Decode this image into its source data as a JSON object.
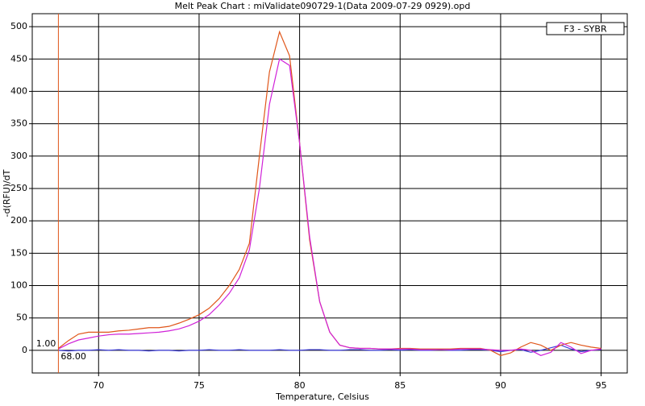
{
  "chart_data": {
    "type": "line",
    "title": "Melt Peak Chart : miValidate090729-1(Data 2009-07-29 0929).opd",
    "x_label": "Temperature, Celsius",
    "y_label": "-d(RFU)/dT",
    "legend": {
      "label": "F3 - SYBR",
      "position": "upper right"
    },
    "grid": true,
    "xlim": [
      66.7,
      96.3
    ],
    "ylim": [
      -35,
      520
    ],
    "xticks": [
      70,
      75,
      80,
      85,
      90,
      95
    ],
    "yticks": [
      0,
      50,
      100,
      150,
      200,
      250,
      300,
      350,
      400,
      450,
      500
    ],
    "x": [
      68,
      68.5,
      69,
      69.5,
      70,
      70.5,
      71,
      71.5,
      72,
      72.5,
      73,
      73.5,
      74,
      74.5,
      75,
      75.5,
      76,
      76.5,
      77,
      77.5,
      78,
      78.5,
      79,
      79.5,
      80,
      80.5,
      81,
      81.5,
      82,
      82.5,
      83,
      83.5,
      84,
      84.5,
      85,
      85.5,
      86,
      86.5,
      87,
      87.5,
      88,
      88.5,
      89,
      89.5,
      90,
      90.5,
      91,
      91.5,
      92,
      92.5,
      93,
      93.5,
      94,
      94.5,
      95
    ],
    "series": [
      {
        "color": "#3a3ad8",
        "values": [
          0,
          -1,
          0,
          0,
          1,
          0,
          1,
          0,
          0,
          -1,
          0,
          0,
          -1,
          0,
          0,
          1,
          0,
          0,
          1,
          0,
          0,
          0,
          1,
          0,
          0,
          1,
          1,
          0,
          0,
          1,
          1,
          0,
          0,
          1,
          0,
          1,
          0,
          0,
          1,
          0,
          0,
          1,
          1,
          0,
          -2,
          0,
          1,
          -3,
          0,
          4,
          8,
          2,
          -2,
          0,
          1
        ]
      },
      {
        "color": "#e0561a",
        "values": [
          3,
          15,
          25,
          28,
          28,
          28,
          30,
          31,
          33,
          35,
          35,
          37,
          42,
          48,
          55,
          65,
          80,
          100,
          125,
          165,
          300,
          430,
          492,
          455,
          320,
          170,
          75,
          28,
          8,
          4,
          3,
          3,
          2,
          2,
          3,
          3,
          2,
          2,
          2,
          2,
          3,
          3,
          3,
          0,
          -8,
          -4,
          5,
          12,
          8,
          0,
          8,
          12,
          8,
          5,
          3
        ]
      },
      {
        "color": "#d022d8",
        "values": [
          2,
          10,
          16,
          19,
          22,
          24,
          25,
          25,
          26,
          27,
          28,
          30,
          33,
          38,
          45,
          55,
          70,
          88,
          112,
          155,
          250,
          380,
          450,
          440,
          320,
          175,
          75,
          28,
          8,
          4,
          3,
          3,
          2,
          2,
          2,
          2,
          1,
          1,
          1,
          1,
          2,
          2,
          2,
          1,
          0,
          0,
          2,
          0,
          -8,
          -3,
          12,
          5,
          -5,
          0,
          2
        ]
      }
    ],
    "cursor": {
      "color": "#e0561a",
      "x": {
        "value": 68,
        "label": "68.00"
      },
      "y": {
        "value": 1,
        "label": "1.00"
      }
    }
  }
}
